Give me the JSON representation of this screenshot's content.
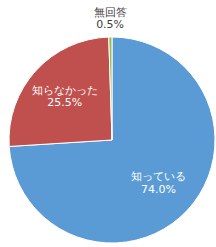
{
  "chart_data": {
    "type": "pie",
    "categories": [
      "知っている",
      "知らなかった",
      "無回答"
    ],
    "values": [
      74.0,
      25.5,
      0.5
    ],
    "value_labels": [
      "74.0%",
      "25.5%",
      "0.5%"
    ],
    "colors": [
      "#5b9bd5",
      "#c0504d",
      "#9bbb59"
    ],
    "data_labels": true
  }
}
